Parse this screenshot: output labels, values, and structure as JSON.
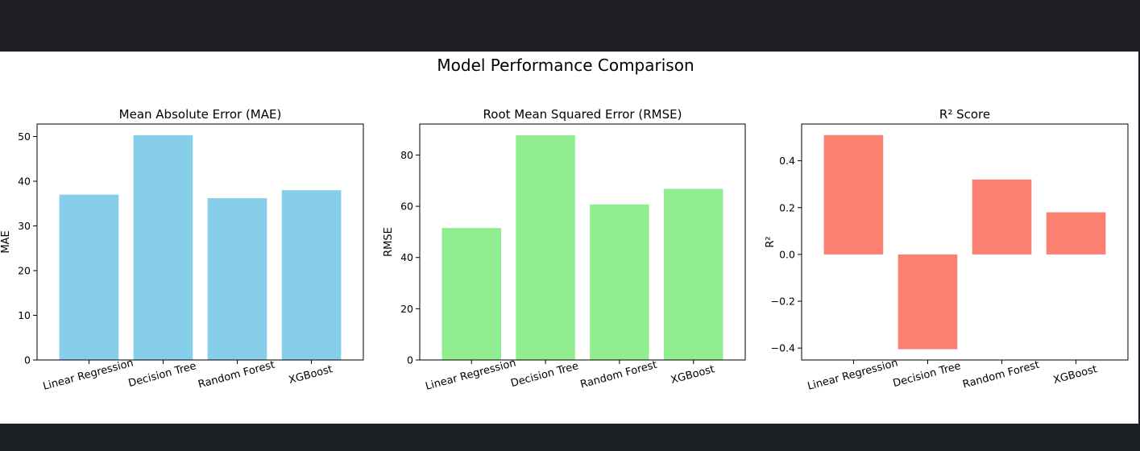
{
  "figure": {
    "suptitle": "Model Performance Comparison"
  },
  "chart_data": [
    {
      "type": "bar",
      "title": "Mean Absolute Error (MAE)",
      "xlabel": "",
      "ylabel": "MAE",
      "categories": [
        "Linear Regression",
        "Decision Tree",
        "Random Forest",
        "XGBoost"
      ],
      "values": [
        37.0,
        50.3,
        36.2,
        38.0
      ],
      "ylim": [
        0,
        52.8
      ],
      "yticks": [
        0,
        10,
        20,
        30,
        40,
        50
      ],
      "ytick_labels": [
        "0",
        "10",
        "20",
        "30",
        "40",
        "50"
      ],
      "color": "#87ceeb",
      "grid": false
    },
    {
      "type": "bar",
      "title": "Root Mean Squared Error (RMSE)",
      "xlabel": "",
      "ylabel": "RMSE",
      "categories": [
        "Linear Regression",
        "Decision Tree",
        "Random Forest",
        "XGBoost"
      ],
      "values": [
        51.5,
        87.7,
        60.7,
        66.8
      ],
      "ylim": [
        0,
        92.1
      ],
      "yticks": [
        0,
        20,
        40,
        60,
        80
      ],
      "ytick_labels": [
        "0",
        "20",
        "40",
        "60",
        "80"
      ],
      "color": "#90ee90",
      "grid": false
    },
    {
      "type": "bar",
      "title": "R² Score",
      "xlabel": "",
      "ylabel": "R²",
      "categories": [
        "Linear Regression",
        "Decision Tree",
        "Random Forest",
        "XGBoost"
      ],
      "values": [
        0.51,
        -0.405,
        0.32,
        0.18
      ],
      "ylim": [
        -0.451,
        0.557
      ],
      "yticks": [
        -0.4,
        -0.2,
        0.0,
        0.2,
        0.4
      ],
      "ytick_labels": [
        "−0.4",
        "−0.2",
        "0.0",
        "0.2",
        "0.4"
      ],
      "color": "#fa8072",
      "grid": false
    }
  ]
}
